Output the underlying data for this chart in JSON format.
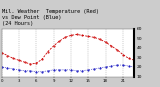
{
  "title": "Mil. Weather  Temperature (Red)\nvs Dew Point (Blue)\n(24 Hours)",
  "title_fontsize": 3.8,
  "bg_color": "#cccccc",
  "plot_bg": "#ffffff",
  "temp_x": [
    0,
    1,
    2,
    3,
    4,
    5,
    6,
    7,
    8,
    9,
    10,
    11,
    12,
    13,
    14,
    15,
    16,
    17,
    18,
    19,
    20,
    21,
    22,
    23
  ],
  "temp_y": [
    35,
    32,
    29,
    27,
    25,
    23,
    24,
    28,
    36,
    42,
    47,
    51,
    53,
    54,
    53,
    52,
    51,
    49,
    46,
    42,
    38,
    33,
    29,
    27
  ],
  "dew_x": [
    0,
    1,
    2,
    3,
    4,
    5,
    6,
    7,
    8,
    9,
    10,
    11,
    12,
    13,
    14,
    15,
    16,
    17,
    18,
    19,
    20,
    21,
    22,
    23
  ],
  "dew_y": [
    20,
    19,
    18,
    17,
    16,
    16,
    15,
    15,
    16,
    17,
    17,
    17,
    17,
    16,
    16,
    17,
    18,
    19,
    20,
    21,
    22,
    22,
    21,
    20
  ],
  "ylim": [
    10,
    60
  ],
  "xlim": [
    0,
    23
  ],
  "y_ticks": [
    10,
    20,
    30,
    40,
    50,
    60
  ],
  "y_tick_labels": [
    "10",
    "20",
    "30",
    "40",
    "50",
    "60"
  ],
  "x_tick_step": 3,
  "ytick_fontsize": 3.2,
  "xtick_fontsize": 2.8,
  "red_color": "#cc0000",
  "blue_color": "#0000bb",
  "grid_color": "#999999",
  "grid_x_positions": [
    0,
    3,
    6,
    9,
    12,
    15,
    18,
    21,
    23
  ]
}
